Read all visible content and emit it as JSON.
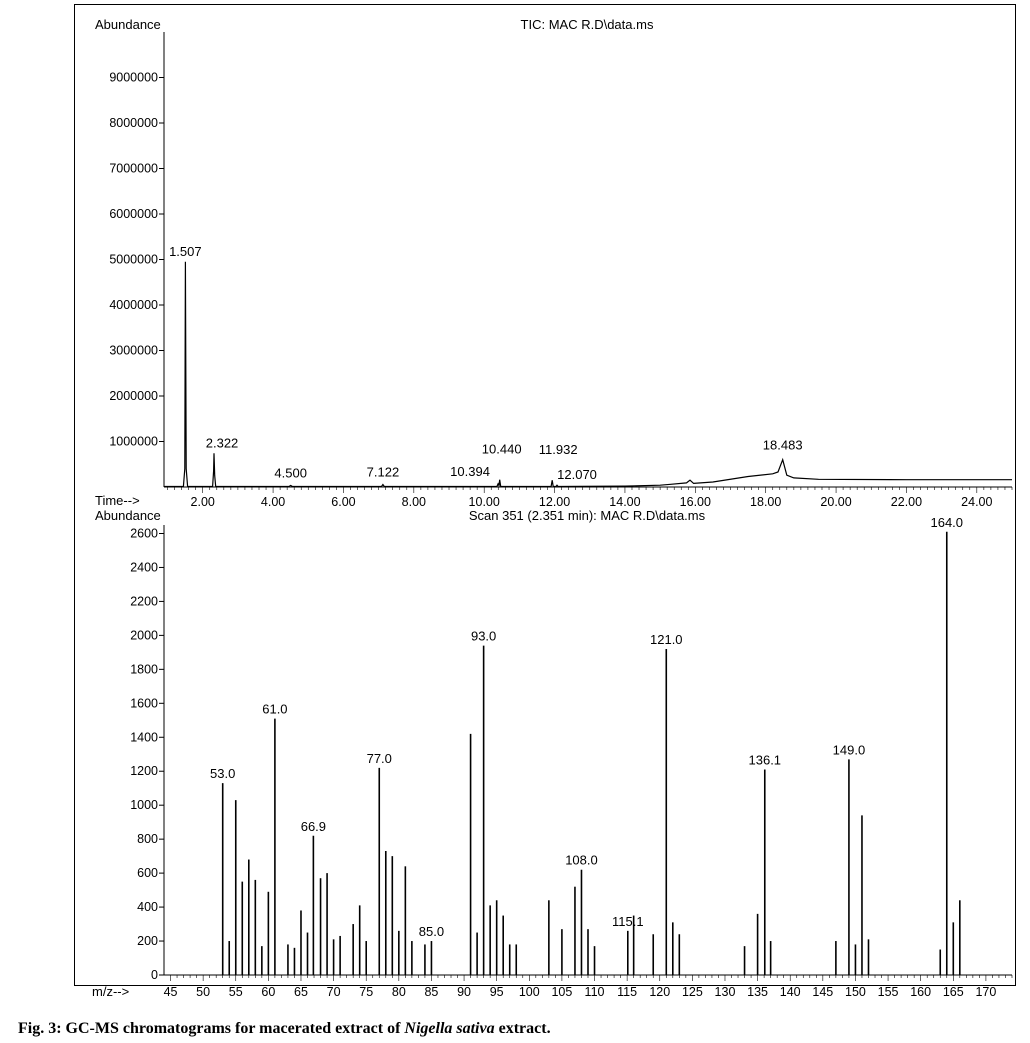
{
  "caption": {
    "prefix": "Fig. 3: GC-MS chromatograms for macerated extract of ",
    "species": "Nigella sativa",
    "suffix": " extract."
  },
  "chart_data": [
    {
      "type": "line",
      "title": "TIC: MAC R.D\\data.ms",
      "ylabel": "Abundance",
      "xlabel": "Time-->",
      "xlim": [
        0.9,
        25.0
      ],
      "ylim": [
        0,
        10000000
      ],
      "x_ticks": [
        "2.00",
        "4.00",
        "6.00",
        "8.00",
        "10.00",
        "12.00",
        "14.00",
        "16.00",
        "18.00",
        "20.00",
        "22.00",
        "24.00"
      ],
      "y_ticks": [
        "1000000",
        "2000000",
        "3000000",
        "4000000",
        "5000000",
        "6000000",
        "7000000",
        "8000000",
        "9000000"
      ],
      "series": [
        {
          "x": [
            0.9,
            1.45,
            1.49,
            1.507,
            1.53,
            1.57,
            2.28,
            2.31,
            2.322,
            2.34,
            2.37,
            4.45,
            4.5,
            4.55,
            7.08,
            7.122,
            7.16,
            10.36,
            10.394,
            10.42,
            10.44,
            10.47,
            11.9,
            11.932,
            11.96,
            12.04,
            12.07,
            12.1,
            14.0,
            15.0,
            15.3,
            15.75,
            15.85,
            15.95,
            16.5,
            17.5,
            18.2,
            18.35,
            18.483,
            18.6,
            18.8,
            19.5,
            22.0,
            25.0
          ],
          "y": [
            10000,
            10000,
            400000,
            4950000,
            400000,
            12000,
            12000,
            350000,
            740000,
            250000,
            12000,
            12000,
            35000,
            12000,
            12000,
            55000,
            12000,
            12000,
            70000,
            30000,
            160000,
            12000,
            12000,
            150000,
            12000,
            12000,
            40000,
            12000,
            20000,
            40000,
            60000,
            90000,
            150000,
            80000,
            110000,
            230000,
            290000,
            330000,
            600000,
            260000,
            200000,
            170000,
            160000,
            160000
          ]
        }
      ],
      "annotations": [
        {
          "label": "1.507",
          "x": 1.507,
          "y": 4950000
        },
        {
          "label": "2.322",
          "x": 2.322,
          "y": 740000
        },
        {
          "label": "4.500",
          "x": 4.5,
          "y": 35000
        },
        {
          "label": "7.122",
          "x": 7.122,
          "y": 55000
        },
        {
          "label": "10.394",
          "x": 10.394,
          "y": 70000
        },
        {
          "label": "10.440",
          "x": 10.44,
          "y": 160000
        },
        {
          "label": "11.932",
          "x": 11.932,
          "y": 150000
        },
        {
          "label": "12.070",
          "x": 12.07,
          "y": 40000
        },
        {
          "label": "18.483",
          "x": 18.483,
          "y": 600000
        }
      ]
    },
    {
      "type": "bar",
      "title": "Scan 351 (2.351 min): MAC R.D\\data.ms",
      "ylabel": "Abundance",
      "xlabel": "m/z-->",
      "xlim": [
        44,
        174
      ],
      "ylim": [
        0,
        2650
      ],
      "x_ticks": [
        "45",
        "50",
        "55",
        "60",
        "65",
        "70",
        "75",
        "80",
        "85",
        "90",
        "95",
        "100",
        "105",
        "110",
        "115",
        "120",
        "125",
        "130",
        "135",
        "140",
        "145",
        "150",
        "155",
        "160",
        "165",
        "170"
      ],
      "y_ticks": [
        "0",
        "200",
        "400",
        "600",
        "800",
        "1000",
        "1200",
        "1400",
        "1600",
        "1800",
        "2000",
        "2200",
        "2400",
        "2600"
      ],
      "mz": [
        53.0,
        54.0,
        55.0,
        56.0,
        57.0,
        58.0,
        59.0,
        60.0,
        61.0,
        63.0,
        64.0,
        65.0,
        66.0,
        66.9,
        68.0,
        69.0,
        70.0,
        71.0,
        73.0,
        74.0,
        75.0,
        77.0,
        78.0,
        79.0,
        80.0,
        81.0,
        82.0,
        84.0,
        85.0,
        91.0,
        92.0,
        93.0,
        94.0,
        95.0,
        96.0,
        97.0,
        98.0,
        103.0,
        105.0,
        107.0,
        108.0,
        109.0,
        110.0,
        115.1,
        116.0,
        119.0,
        121.0,
        122.0,
        123.0,
        133.0,
        135.0,
        136.1,
        137.0,
        147.0,
        149.0,
        150.0,
        151.0,
        152.0,
        163.0,
        164.0,
        165.0,
        166.0
      ],
      "abundance": [
        1130,
        200,
        1030,
        550,
        680,
        560,
        170,
        490,
        1510,
        180,
        160,
        380,
        250,
        820,
        570,
        600,
        210,
        230,
        300,
        410,
        200,
        1220,
        730,
        700,
        260,
        640,
        200,
        180,
        200,
        1420,
        250,
        1940,
        410,
        440,
        350,
        180,
        180,
        440,
        270,
        520,
        620,
        270,
        170,
        260,
        350,
        240,
        1920,
        310,
        240,
        170,
        360,
        1210,
        200,
        200,
        1270,
        180,
        940,
        210,
        150,
        2610,
        310,
        440
      ],
      "peak_labels": [
        {
          "label": "53.0",
          "mz": 53.0,
          "value": 1130
        },
        {
          "label": "61.0",
          "mz": 61.0,
          "value": 1510
        },
        {
          "label": "66.9",
          "mz": 66.9,
          "value": 820
        },
        {
          "label": "77.0",
          "mz": 77.0,
          "value": 1220
        },
        {
          "label": "85.0",
          "mz": 85.0,
          "value": 200
        },
        {
          "label": "93.0",
          "mz": 93.0,
          "value": 1940
        },
        {
          "label": "108.0",
          "mz": 108.0,
          "value": 620
        },
        {
          "label": "115.1",
          "mz": 115.1,
          "value": 260
        },
        {
          "label": "121.0",
          "mz": 121.0,
          "value": 1920
        },
        {
          "label": "136.1",
          "mz": 136.1,
          "value": 1210
        },
        {
          "label": "149.0",
          "mz": 149.0,
          "value": 1270
        },
        {
          "label": "164.0",
          "mz": 164.0,
          "value": 2610
        }
      ]
    }
  ]
}
